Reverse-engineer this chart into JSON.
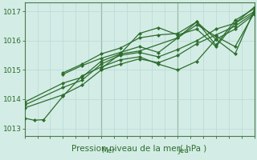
{
  "xlabel": "Pression niveau de la mer( hPa )",
  "bg_color": "#d4ece6",
  "plot_bg_color": "#d4ece6",
  "grid_color": "#b8d8d2",
  "line_color": "#2d6e2d",
  "axis_color": "#4a7a4a",
  "label_color": "#2d6e2d",
  "xlim": [
    0,
    72
  ],
  "ylim": [
    1012.75,
    1017.3
  ],
  "yticks": [
    1013,
    1014,
    1015,
    1016,
    1017
  ],
  "xtick_spacing": 4,
  "day_labels": [
    [
      24,
      "Mer"
    ],
    [
      48,
      "Jeu"
    ]
  ],
  "series": [
    [
      0,
      1013.35,
      3,
      1013.28,
      6,
      1013.3,
      12,
      1014.1,
      18,
      1014.8,
      24,
      1015.1,
      30,
      1015.35,
      36,
      1015.45,
      42,
      1015.2,
      48,
      1015.0,
      54,
      1015.3,
      60,
      1016.05,
      66,
      1016.4,
      72,
      1016.9
    ],
    [
      0,
      1013.7,
      12,
      1014.15,
      18,
      1014.48,
      24,
      1015.0,
      30,
      1015.2,
      36,
      1015.38,
      42,
      1015.25,
      48,
      1015.5,
      54,
      1015.9,
      60,
      1016.2,
      66,
      1016.5,
      72,
      1016.95
    ],
    [
      0,
      1013.8,
      12,
      1014.4,
      18,
      1014.65,
      24,
      1015.2,
      30,
      1015.5,
      36,
      1015.6,
      42,
      1015.45,
      48,
      1015.7,
      54,
      1016.0,
      60,
      1016.4,
      66,
      1016.6,
      72,
      1017.0
    ],
    [
      0,
      1013.9,
      12,
      1014.55,
      18,
      1014.75,
      24,
      1015.3,
      30,
      1015.55,
      36,
      1015.65,
      48,
      1016.1,
      54,
      1016.55,
      60,
      1016.15,
      66,
      1015.8,
      72,
      1016.95
    ],
    [
      12,
      1014.85,
      18,
      1015.15,
      24,
      1015.4,
      30,
      1015.6,
      36,
      1015.8,
      42,
      1015.6,
      48,
      1016.1,
      54,
      1016.65,
      60,
      1016.05,
      66,
      1015.55,
      72,
      1017.05
    ],
    [
      12,
      1014.9,
      18,
      1015.2,
      24,
      1015.55,
      30,
      1015.75,
      36,
      1016.1,
      42,
      1016.2,
      48,
      1016.25,
      54,
      1016.65,
      60,
      1015.85,
      66,
      1016.7,
      72,
      1017.1
    ],
    [
      24,
      1015.05,
      30,
      1015.55,
      36,
      1016.25,
      42,
      1016.45,
      48,
      1016.2,
      54,
      1016.4,
      60,
      1015.8,
      66,
      1016.6,
      72,
      1017.15
    ]
  ]
}
